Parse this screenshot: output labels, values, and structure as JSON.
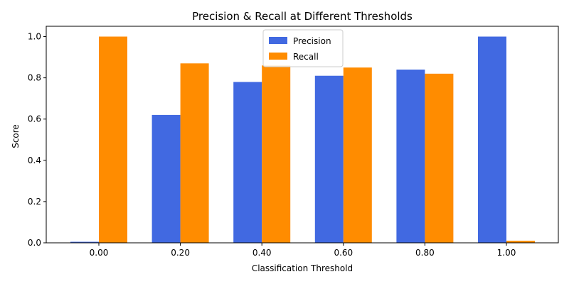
{
  "chart_data": {
    "type": "bar",
    "title": "Precision & Recall at Different Thresholds",
    "xlabel": "Classification Threshold",
    "ylabel": "Score",
    "categories": [
      "0.00",
      "0.20",
      "0.40",
      "0.60",
      "0.80",
      "1.00"
    ],
    "series": [
      {
        "name": "Precision",
        "color": "#4169E1",
        "values": [
          0.005,
          0.62,
          0.78,
          0.81,
          0.84,
          1.0
        ]
      },
      {
        "name": "Recall",
        "color": "#FF8C00",
        "values": [
          1.0,
          0.87,
          0.86,
          0.85,
          0.82,
          0.01
        ]
      }
    ],
    "ylim": [
      0,
      1.05
    ],
    "yticks": [
      "0.0",
      "0.2",
      "0.4",
      "0.6",
      "0.8",
      "1.0"
    ],
    "grid": false,
    "legend_position": "upper-center"
  }
}
